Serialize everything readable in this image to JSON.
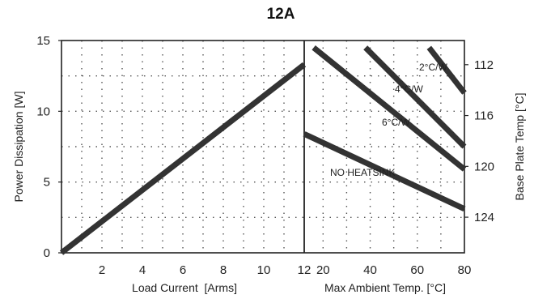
{
  "chart_data": {
    "type": "line",
    "title": "12A",
    "grid": true,
    "left_panel": {
      "xlabel": "Load Current  [Arms]",
      "ylabel": "Power Dissipation [W]",
      "xlim": [
        0,
        12
      ],
      "ylim": [
        0,
        15
      ],
      "xticks": [
        2,
        4,
        6,
        8,
        10,
        12
      ],
      "yticks": [
        0,
        5,
        10,
        15
      ],
      "series": [
        {
          "x": [
            0,
            12
          ],
          "y": [
            0,
            13.3
          ]
        }
      ]
    },
    "right_panel": {
      "xlabel": "Max Ambient Temp. [°C]",
      "ylabel": "Base Plate Temp [°C]",
      "xlim": [
        12,
        80
      ],
      "xticks": [
        20,
        40,
        60,
        80
      ],
      "right_ylim": [
        126.8,
        110.1
      ],
      "right_yticks": [
        112,
        116,
        120,
        124
      ],
      "series": [
        {
          "name": "2°C/W",
          "x": [
            65,
            80
          ],
          "y": [
            14.5,
            11.3
          ]
        },
        {
          "name": "4°C/W",
          "x": [
            38,
            80
          ],
          "y": [
            14.5,
            7.5
          ]
        },
        {
          "name": "6°C/W",
          "x": [
            16,
            80
          ],
          "y": [
            14.5,
            5.9
          ]
        },
        {
          "name": "NO HEATSINK",
          "x": [
            12,
            80
          ],
          "y": [
            8.4,
            3.1
          ]
        }
      ]
    }
  }
}
